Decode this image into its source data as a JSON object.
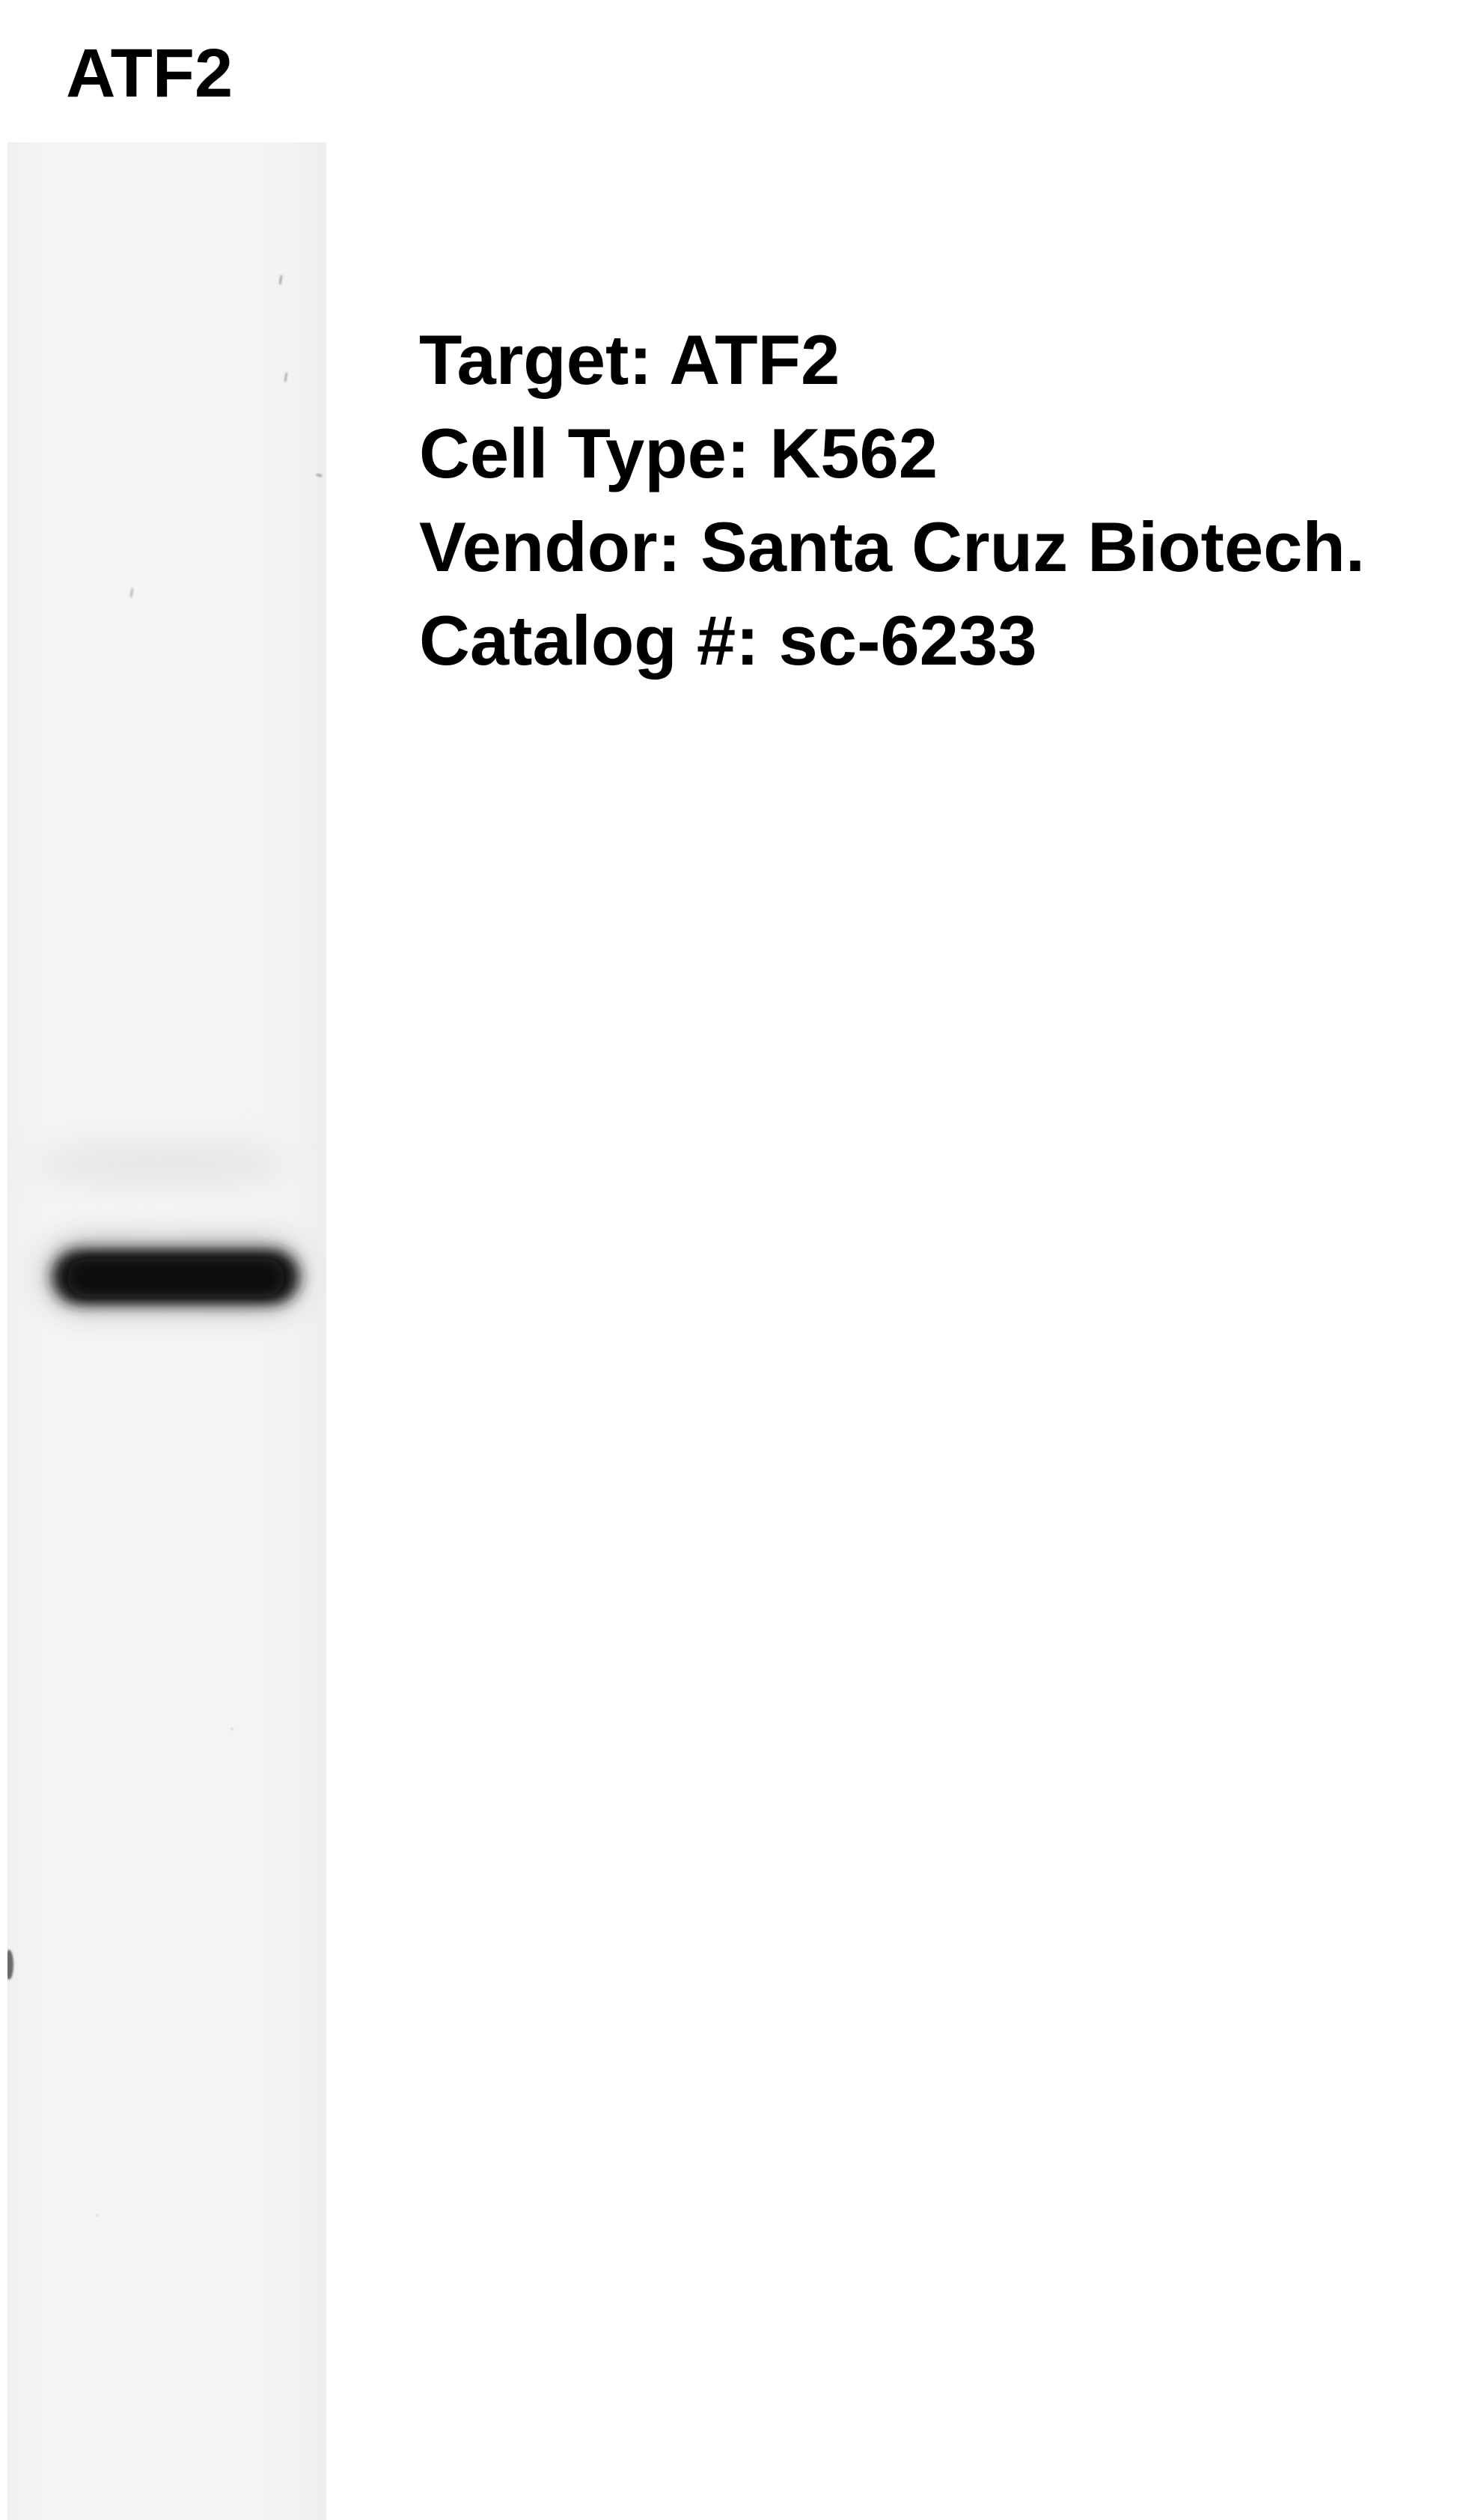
{
  "lane": {
    "label": "ATF2"
  },
  "info": {
    "target": "Target: ATF2",
    "cell_type": "Cell Type: K562",
    "vendor": "Vendor: Santa Cruz Biotech.",
    "catalog": "Catalog #: sc-6233"
  },
  "colors": {
    "background": "#ffffff",
    "lane_background": "#f4f4f4",
    "band": "#1a1a1a",
    "text": "#000000"
  }
}
